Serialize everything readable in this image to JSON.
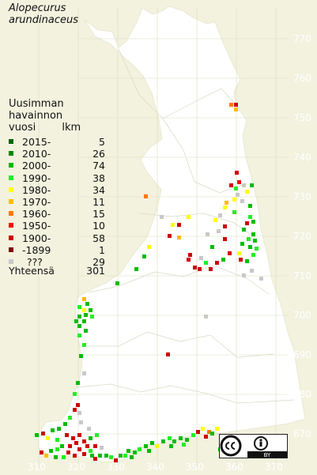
{
  "title": "Alopecurus arundinaceus",
  "legend": {
    "heading": [
      "Uusimman",
      "havainnon",
      "vuosi",
      "lkm"
    ],
    "rows": [
      {
        "label": "2015-",
        "count": "5",
        "color": "#006400"
      },
      {
        "label": "2010-",
        "count": "26",
        "color": "#008800"
      },
      {
        "label": "2000-",
        "count": "74",
        "color": "#00bb00"
      },
      {
        "label": "1990-",
        "count": "38",
        "color": "#22ee22"
      },
      {
        "label": "1980-",
        "count": "34",
        "color": "#ffff00"
      },
      {
        "label": "1970-",
        "count": "11",
        "color": "#ffbb00"
      },
      {
        "label": "1960-",
        "count": "15",
        "color": "#ff7700"
      },
      {
        "label": "1950-",
        "count": "10",
        "color": "#ee1100"
      },
      {
        "label": "1900-",
        "count": "58",
        "color": "#cc0000"
      },
      {
        "label": "-1899",
        "count": "1",
        "color": "#800000"
      },
      {
        "label": "???",
        "count": "29",
        "color": "#c8c8c8"
      }
    ],
    "total_label": "Yhteensä",
    "total_count": "301"
  },
  "axes": {
    "y_ticks": [
      "770",
      "760",
      "750",
      "740",
      "730",
      "720",
      "710",
      "700",
      "690",
      "680",
      "670"
    ],
    "x_ticks": [
      "310",
      "320",
      "330",
      "340",
      "350",
      "360",
      "370"
    ]
  },
  "license": {
    "icons": [
      "cc-icon",
      "attribution-icon"
    ],
    "text": "BY"
  },
  "colors": {
    "background": "#f2f2df",
    "land": "#ffffff",
    "grid": "#ddddbb"
  }
}
